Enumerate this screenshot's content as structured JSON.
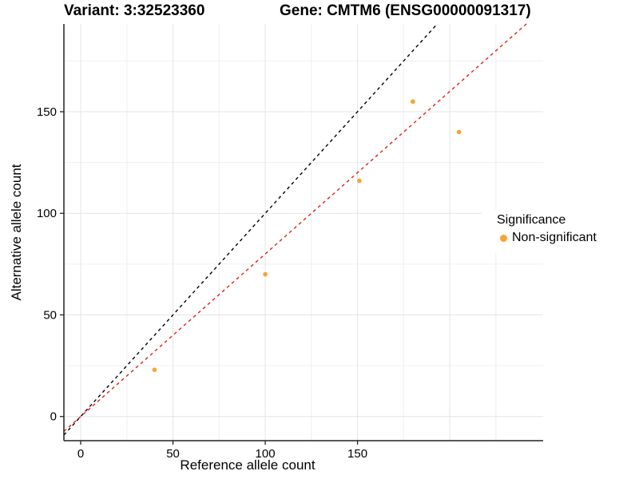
{
  "chart_data": {
    "type": "scatter",
    "titles": {
      "variant": "Variant: 3:32523360",
      "gene": "Gene: CMTM6 (ENSG00000091317)"
    },
    "xlabel": "Reference allele count",
    "ylabel": "Alternative allele count",
    "xlim": [
      -9.1,
      250.6
    ],
    "ylim": [
      -11.9,
      193.2
    ],
    "x_ticks": [
      0,
      50,
      100,
      150
    ],
    "y_ticks": [
      0,
      50,
      100,
      150
    ],
    "grid": {
      "x_major": [
        0,
        50,
        100,
        150,
        200
      ],
      "x_minor": [
        25,
        75,
        125,
        175,
        225
      ],
      "y_major": [
        0,
        50,
        100,
        150
      ],
      "y_minor": [
        25,
        75,
        125,
        175
      ]
    },
    "series": [
      {
        "name": "Non-significant",
        "color": "#F9A232",
        "points": [
          {
            "x": 40,
            "y": 23
          },
          {
            "x": 100,
            "y": 70
          },
          {
            "x": 151,
            "y": 116
          },
          {
            "x": 180,
            "y": 155
          },
          {
            "x": 205,
            "y": 140
          }
        ]
      }
    ],
    "lines": [
      {
        "name": "identity-line",
        "slope": 1.0,
        "intercept": 0,
        "color": "#000000",
        "style": "dashed"
      },
      {
        "name": "fit-line",
        "slope": 0.8,
        "intercept": 0,
        "color": "#E02020",
        "style": "dashed"
      }
    ],
    "legend": {
      "title": "Significance",
      "items": [
        {
          "label": "Non-significant",
          "color": "#F9A232"
        }
      ]
    }
  }
}
